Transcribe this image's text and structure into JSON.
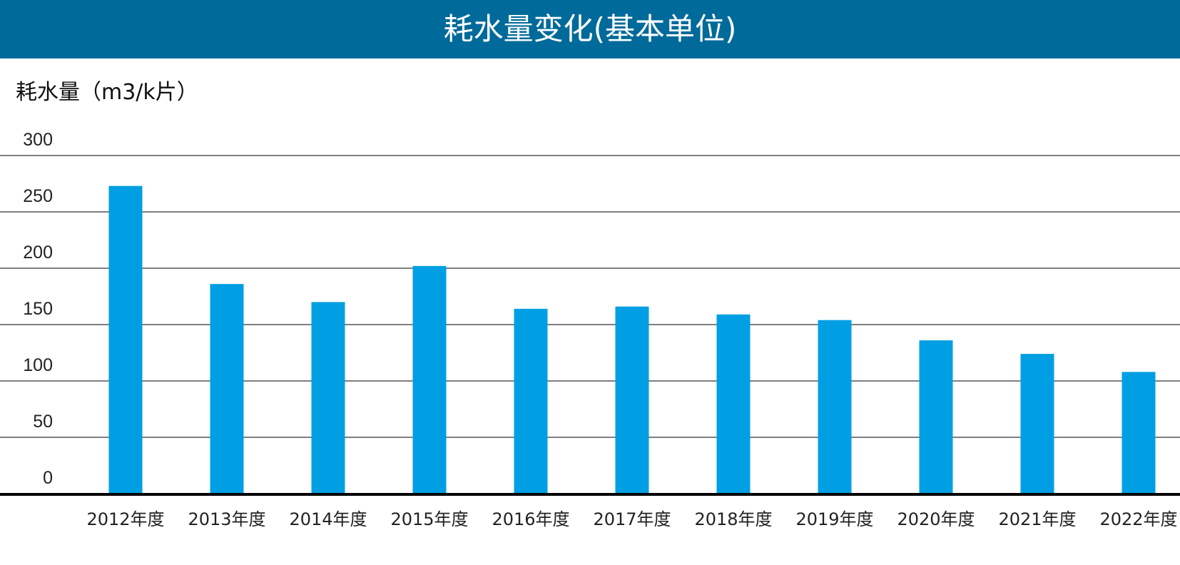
{
  "header": {
    "title": "耗水量变化(基本单位)"
  },
  "colors": {
    "header_bg": "#006a9a",
    "bar": "#009fe3",
    "grid": "#333333",
    "axis": "#000000"
  },
  "chart_data": {
    "type": "bar",
    "title": "耗水量变化(基本单位)",
    "ylabel": "耗水量（m3/k片）",
    "xlabel": "",
    "ylim": [
      0,
      300
    ],
    "yticks": [
      "0",
      "50",
      "100",
      "150",
      "200",
      "250",
      "300"
    ],
    "grid": true,
    "categories": [
      "2012年度",
      "2013年度",
      "2014年度",
      "2015年度",
      "2016年度",
      "2017年度",
      "2018年度",
      "2019年度",
      "2020年度",
      "2021年度",
      "2022年度"
    ],
    "values": [
      273,
      186,
      170,
      202,
      164,
      166,
      159,
      154,
      136,
      124,
      108
    ]
  }
}
